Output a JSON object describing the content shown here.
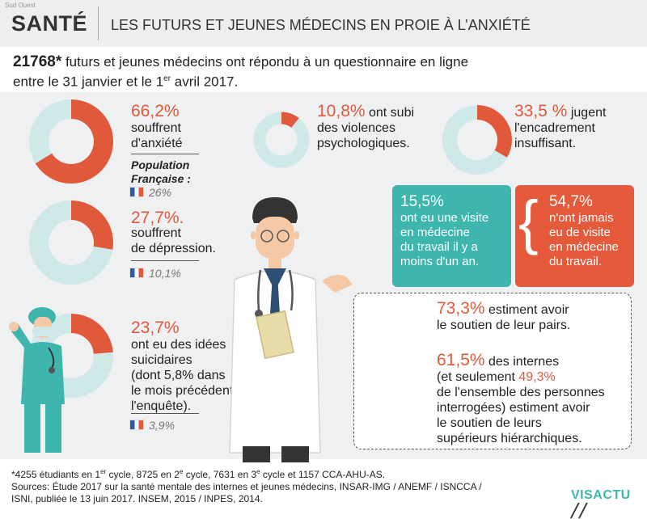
{
  "header": {
    "brand_small": "Sud Ouest",
    "category": "SANTÉ",
    "title": "LES FUTURS ET JEUNES MÉDECINS EN PROIE À L’ANXIÉTÉ"
  },
  "intro": {
    "count": "21768*",
    "line1_rest": " futurs et jeunes médecins ont répondu à un questionnaire en ligne",
    "line2_a": "entre le 31 janvier et le 1",
    "line2_sup": "er",
    "line2_b": " avril 2017."
  },
  "stats": {
    "anxiety": {
      "pct": "66,2",
      "pct_sign": "%",
      "line1": "souffrent",
      "line2": "d'anxiété",
      "fraction": 0.662,
      "ref_label_1": "Population",
      "ref_label_2": "Française :",
      "ref_value": "26%"
    },
    "violence": {
      "pct": "10,8%",
      "text_1": " ont subi",
      "text_2": "des violences",
      "text_3": "psychologiques.",
      "fraction": 0.108
    },
    "supervision": {
      "pct": "33,5",
      "pct_sign": " %",
      "text_1": " jugent",
      "text_2": "l'encadrement",
      "text_3": "insuffisant.",
      "fraction": 0.335
    },
    "depression": {
      "pct": "27,7%.",
      "line1": "souffrent",
      "line2": "de dépression.",
      "ref_value": "10,1%",
      "fraction": 0.277
    },
    "suicidal": {
      "pct": "23,7",
      "pct_sign": "%",
      "line1": "ont eu des idées",
      "line2": "suicidaires",
      "line3": "(dont 5,8% dans",
      "line4": "le mois précédent",
      "line5": "l'enquête).",
      "ref_value": "3,9%",
      "fraction": 0.237
    }
  },
  "boxes": {
    "teal": {
      "pct": "15,5%",
      "lines": [
        "ont eu une visite",
        "en médecine",
        "du travail il y a",
        "moins d'un an."
      ]
    },
    "orange": {
      "pct": "54,7%",
      "lines": [
        "n'ont jamais",
        "eu de visite",
        "en médecine",
        "du travail."
      ]
    }
  },
  "dashed": {
    "peers_pct": "73,3%",
    "peers_1": " estiment avoir",
    "peers_2": "le soutien de leur pairs.",
    "interns_pct": "61,5",
    "interns_pct_sign": "%",
    "interns_1": " des internes",
    "interns_2a": "(et seulement ",
    "interns_2_pct": "49,3%",
    "interns_3": "de l'ensemble des personnes",
    "interns_4": "interrogées) estiment avoir",
    "interns_5": "le soutien de leurs",
    "interns_6": "supérieurs hiérarchiques."
  },
  "footer": {
    "line1_a": "*4255 étudiants en 1",
    "line1_s1": "er",
    "line1_b": " cycle, 8725 en 2",
    "line1_s2": "e",
    "line1_c": " cycle, 7631 en 3",
    "line1_s3": "e",
    "line1_d": " cycle et 1157 CCA-AHU-AS.",
    "line2": "Sources: Étude 2017 sur la santé mentale des internes et jeunes médecins, INSAR-IMG / ANEMF / ISNCCA /",
    "line3": "ISNI, publiée le 13 juin 2017. INSEM, 2015 / INPES, 2014.",
    "logo_a": "VIS",
    "logo_b": "ACTU"
  },
  "colors": {
    "orange": "#e0593a",
    "teal": "#3fb6ad",
    "ring_bg": "#cfe8e8",
    "header_bg": "#eeeeee"
  }
}
